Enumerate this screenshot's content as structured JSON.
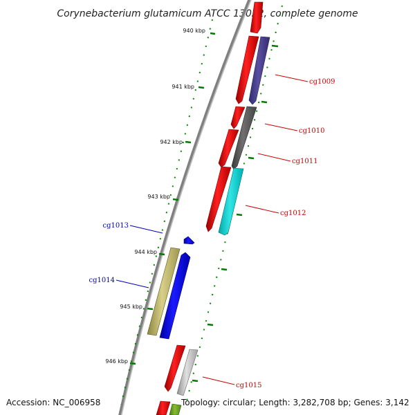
{
  "title": "Corynebacterium glutamicum ATCC 13032, complete genome",
  "footer": {
    "accession": "Accession: NC_006958",
    "topology": "Topology: circular; Length: 3,282,708 bp; Genes: 3,142"
  },
  "colors": {
    "backbone": "#808080",
    "tick": "#007a00",
    "forward_label": "#cc0000",
    "reverse_label": "#0000bb",
    "cds": "#ff0000"
  },
  "kbp_ticks": [
    {
      "label": "940 kbp"
    },
    {
      "label": "941 kbp"
    },
    {
      "label": "942 kbp"
    },
    {
      "label": "943 kbp"
    },
    {
      "label": "944 kbp"
    },
    {
      "label": "945 kbp"
    },
    {
      "label": "946 kbp"
    }
  ],
  "gene_labels": [
    {
      "name": "cg1009",
      "strand": "forward"
    },
    {
      "name": "cg1010",
      "strand": "forward"
    },
    {
      "name": "cg1011",
      "strand": "forward"
    },
    {
      "name": "cg1012",
      "strand": "forward"
    },
    {
      "name": "cg1013",
      "strand": "reverse"
    },
    {
      "name": "cg1014",
      "strand": "reverse"
    },
    {
      "name": "cg1015",
      "strand": "forward"
    }
  ]
}
